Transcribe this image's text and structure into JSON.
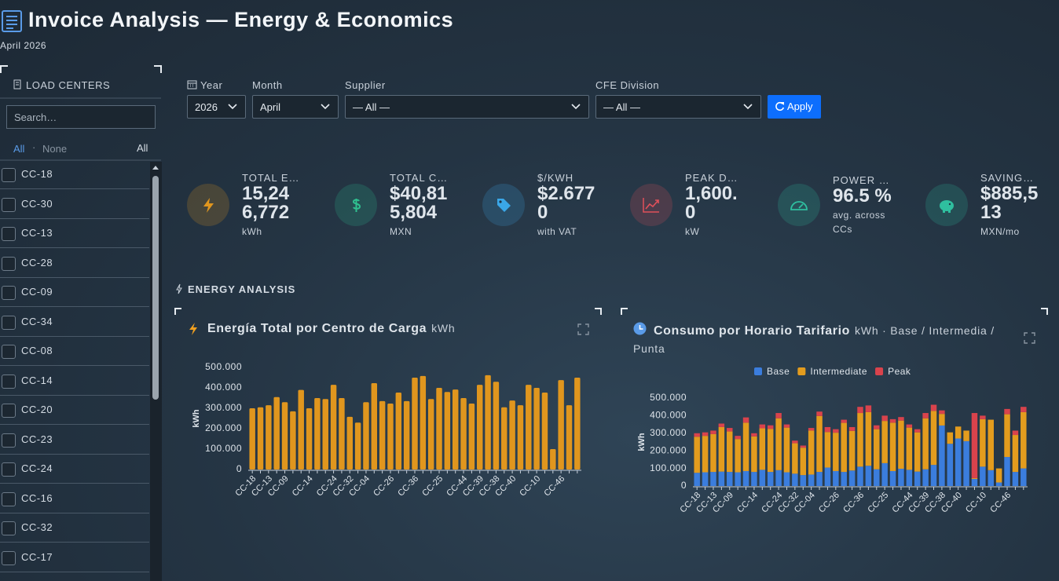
{
  "header": {
    "title": "Invoice Analysis — Energy & Economics",
    "subtitle": "April 2026"
  },
  "sidebar": {
    "title": "LOAD CENTERS",
    "search_placeholder": "Search…",
    "select_all": "All",
    "select_none": "None",
    "selection": "All",
    "items": [
      "CC-18",
      "CC-30",
      "CC-13",
      "CC-28",
      "CC-09",
      "CC-34",
      "CC-08",
      "CC-14",
      "CC-20",
      "CC-23",
      "CC-24",
      "CC-16",
      "CC-32",
      "CC-17"
    ]
  },
  "filters": [
    {
      "label": "Year",
      "value": "2026"
    },
    {
      "label": "Month",
      "value": "April"
    },
    {
      "label": "Supplier",
      "value": "— All —"
    },
    {
      "label": "CFE Division",
      "value": "— All —"
    }
  ],
  "apply": "Apply",
  "kpis": [
    {
      "label": "TOTAL E…",
      "value": "15,246,772",
      "unit": "kWh",
      "color": "#e0961e"
    },
    {
      "label": "TOTAL C…",
      "value": "$40,815,804",
      "unit": "MXN",
      "color": "#2fbf8f"
    },
    {
      "label": "$/KWH",
      "value": "$2.6770",
      "unit": "with VAT",
      "color": "#3aa7e8"
    },
    {
      "label": "PEAK D…",
      "value": "1,600.0",
      "unit": "kW",
      "color": "#e0505a"
    },
    {
      "label": "POWER …",
      "value": "96.5 %",
      "unit": "avg. across CCs",
      "color": "#2fbf9f"
    },
    {
      "label": "SAVING…",
      "value": "$885,513",
      "unit": "MXN/mo",
      "color": "#2fbf9f"
    }
  ],
  "section": "ENERGY ANALYSIS",
  "chart_data": [
    {
      "type": "bar",
      "title": "Energía Total por Centro de Carga",
      "subtitle": "kWh",
      "y_label": "kWh",
      "color": "#e0961e",
      "categories": [
        "CC-18",
        null,
        "CC-13",
        null,
        "CC-09",
        null,
        null,
        "CC-14",
        null,
        null,
        "CC-24",
        null,
        "CC-32",
        null,
        "CC-04",
        null,
        null,
        "CC-26",
        null,
        null,
        "CC-36",
        null,
        null,
        "CC-25",
        null,
        null,
        "CC-44",
        null,
        "CC-39",
        null,
        "CC-38",
        null,
        "CC-40",
        null,
        null,
        "CC-10",
        null,
        null,
        "CC-46",
        null,
        null
      ],
      "values": [
        300000,
        305000,
        315000,
        355000,
        330000,
        285000,
        390000,
        300000,
        350000,
        345000,
        415000,
        350000,
        258000,
        230000,
        330000,
        423000,
        335000,
        323000,
        377000,
        335000,
        450000,
        458000,
        345000,
        400000,
        380000,
        392000,
        350000,
        323000,
        415000,
        462000,
        430000,
        305000,
        338000,
        315000,
        415000,
        400000,
        377000,
        100000,
        438000,
        315000,
        450000
      ],
      "ylim": [
        0,
        500000
      ],
      "yticks": [
        0,
        {
          "value": 100000,
          "label": "100.000"
        },
        {
          "value": 200000,
          "label": "200.000"
        },
        {
          "value": 300000,
          "label": "300.000"
        },
        {
          "value": 400000,
          "label": "400.000"
        },
        {
          "value": 500000,
          "label": "500.000"
        }
      ],
      "grid": false
    },
    {
      "type": "stacked_bar",
      "title": "Consumo por Horario Tarifario",
      "subtitle": "kWh · Base / Intermedia / Punta",
      "y_label": "kWh",
      "legend": "top",
      "categories": [
        "CC-18",
        null,
        "CC-13",
        null,
        "CC-09",
        null,
        null,
        "CC-14",
        null,
        null,
        "CC-24",
        null,
        "CC-32",
        null,
        "CC-04",
        null,
        null,
        "CC-26",
        null,
        null,
        "CC-36",
        null,
        null,
        "CC-25",
        null,
        null,
        "CC-44",
        null,
        "CC-39",
        null,
        "CC-38",
        null,
        "CC-40",
        null,
        null,
        "CC-10",
        null,
        null,
        "CC-46",
        null,
        null
      ],
      "series": [
        {
          "name": "Base",
          "color": "#3b7ddd",
          "values": [
            75000,
            78000,
            80000,
            82000,
            80000,
            78000,
            85000,
            80000,
            92000,
            80000,
            90000,
            78000,
            70000,
            62000,
            65000,
            80000,
            105000,
            85000,
            80000,
            88000,
            110000,
            115000,
            95000,
            130000,
            85000,
            98000,
            92000,
            82000,
            95000,
            120000,
            344000,
            240000,
            270000,
            255000,
            40000,
            110000,
            90000,
            20000,
            165000,
            80000,
            100000
          ]
        },
        {
          "name": "Intermediate",
          "color": "#e39c1e",
          "values": [
            205000,
            207000,
            215000,
            253000,
            230000,
            189000,
            275000,
            202000,
            236000,
            245000,
            295000,
            254000,
            173000,
            156000,
            250000,
            318000,
            202000,
            218000,
            279000,
            225000,
            305000,
            305000,
            228000,
            240000,
            275000,
            274000,
            240000,
            223000,
            290000,
            307000,
            66000,
            65000,
            68000,
            60000,
            5000,
            270000,
            287000,
            80000,
            243000,
            210000,
            320000
          ]
        },
        {
          "name": "Peak",
          "color": "#d9434c",
          "values": [
            20000,
            20000,
            20000,
            20000,
            20000,
            18000,
            30000,
            18000,
            22000,
            20000,
            30000,
            18000,
            15000,
            12000,
            15000,
            25000,
            28000,
            20000,
            18000,
            22000,
            35000,
            38000,
            22000,
            30000,
            20000,
            20000,
            18000,
            18000,
            30000,
            35000,
            20000,
            0,
            0,
            0,
            370000,
            20000,
            0,
            0,
            30000,
            25000,
            30000
          ]
        }
      ],
      "ylim": [
        0,
        500000
      ],
      "yticks": [
        0,
        {
          "value": 100000,
          "label": "100.000"
        },
        {
          "value": 200000,
          "label": "200.000"
        },
        {
          "value": 300000,
          "label": "300.000"
        },
        {
          "value": 400000,
          "label": "400.000"
        },
        {
          "value": 500000,
          "label": "500.000"
        }
      ],
      "grid": false
    }
  ]
}
